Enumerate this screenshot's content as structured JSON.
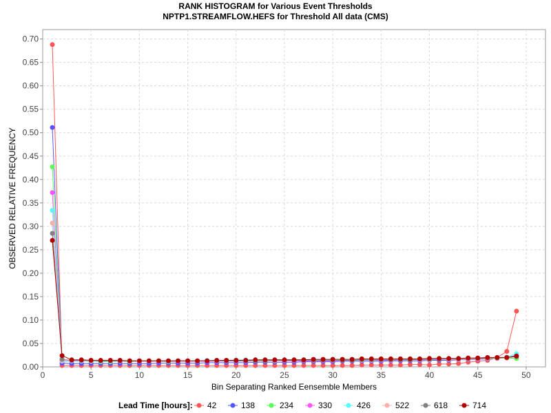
{
  "chart_data": {
    "type": "line",
    "title": "RANK HISTOGRAM for Various Event Thresholds",
    "subtitle": "NPTP1.STREAMFLOW.HEFS for Threshold All data (CMS)",
    "xlabel": "Bin Separating Ranked Eensemble Members",
    "ylabel": "OBSERVED RELATIVE FREQUENCY",
    "xlim": [
      0,
      52
    ],
    "ylim": [
      0,
      0.72
    ],
    "x_ticks": [
      0,
      5,
      10,
      15,
      20,
      25,
      30,
      35,
      40,
      45,
      50
    ],
    "y_ticks": [
      0.0,
      0.05,
      0.1,
      0.15,
      0.2,
      0.25,
      0.3,
      0.35,
      0.4,
      0.45,
      0.5,
      0.55,
      0.6,
      0.65,
      0.7
    ],
    "grid": true,
    "legend_title": "Lead Time [hours]:",
    "legend_position": "bottom",
    "x": [
      1,
      2,
      3,
      4,
      5,
      6,
      7,
      8,
      9,
      10,
      11,
      12,
      13,
      14,
      15,
      16,
      17,
      18,
      19,
      20,
      21,
      22,
      23,
      24,
      25,
      26,
      27,
      28,
      29,
      30,
      31,
      32,
      33,
      34,
      35,
      36,
      37,
      38,
      39,
      40,
      41,
      42,
      43,
      44,
      45,
      46,
      47,
      48,
      49
    ],
    "series": [
      {
        "name": "42",
        "color": "#ff5555",
        "values": [
          0.688,
          0.003,
          0.003,
          0.003,
          0.003,
          0.003,
          0.003,
          0.003,
          0.003,
          0.003,
          0.003,
          0.003,
          0.003,
          0.003,
          0.003,
          0.003,
          0.003,
          0.003,
          0.003,
          0.003,
          0.003,
          0.003,
          0.003,
          0.003,
          0.003,
          0.003,
          0.003,
          0.003,
          0.003,
          0.003,
          0.003,
          0.003,
          0.004,
          0.004,
          0.004,
          0.004,
          0.004,
          0.005,
          0.005,
          0.004,
          0.006,
          0.006,
          0.007,
          0.01,
          0.012,
          0.014,
          0.02,
          0.033,
          0.119
        ]
      },
      {
        "name": "138",
        "color": "#5555ff",
        "values": [
          0.511,
          0.008,
          0.007,
          0.007,
          0.007,
          0.007,
          0.007,
          0.007,
          0.007,
          0.007,
          0.007,
          0.008,
          0.008,
          0.008,
          0.008,
          0.008,
          0.009,
          0.009,
          0.009,
          0.009,
          0.009,
          0.01,
          0.01,
          0.01,
          0.01,
          0.01,
          0.011,
          0.011,
          0.011,
          0.011,
          0.012,
          0.012,
          0.012,
          0.012,
          0.012,
          0.013,
          0.013,
          0.013,
          0.013,
          0.014,
          0.014,
          0.014,
          0.015,
          0.016,
          0.016,
          0.017,
          0.018,
          0.019,
          0.025
        ]
      },
      {
        "name": "234",
        "color": "#55ff55",
        "values": [
          0.427,
          0.012,
          0.013,
          0.012,
          0.012,
          0.011,
          0.011,
          0.012,
          0.011,
          0.012,
          0.012,
          0.012,
          0.011,
          0.012,
          0.012,
          0.012,
          0.013,
          0.013,
          0.013,
          0.013,
          0.014,
          0.014,
          0.014,
          0.014,
          0.014,
          0.015,
          0.015,
          0.015,
          0.015,
          0.016,
          0.016,
          0.016,
          0.016,
          0.016,
          0.016,
          0.017,
          0.017,
          0.017,
          0.017,
          0.017,
          0.017,
          0.017,
          0.018,
          0.018,
          0.018,
          0.018,
          0.018,
          0.019,
          0.018
        ]
      },
      {
        "name": "330",
        "color": "#ff55ff",
        "values": [
          0.372,
          0.012,
          0.012,
          0.012,
          0.012,
          0.012,
          0.012,
          0.012,
          0.012,
          0.012,
          0.012,
          0.012,
          0.012,
          0.012,
          0.012,
          0.012,
          0.012,
          0.012,
          0.012,
          0.012,
          0.012,
          0.013,
          0.013,
          0.013,
          0.013,
          0.013,
          0.013,
          0.013,
          0.013,
          0.013,
          0.014,
          0.014,
          0.014,
          0.014,
          0.014,
          0.014,
          0.015,
          0.015,
          0.015,
          0.015,
          0.016,
          0.016,
          0.016,
          0.017,
          0.017,
          0.018,
          0.019,
          0.02,
          0.022
        ]
      },
      {
        "name": "426",
        "color": "#55ffff",
        "values": [
          0.334,
          0.013,
          0.013,
          0.013,
          0.012,
          0.012,
          0.012,
          0.013,
          0.013,
          0.013,
          0.013,
          0.013,
          0.013,
          0.013,
          0.013,
          0.013,
          0.014,
          0.014,
          0.014,
          0.015,
          0.015,
          0.015,
          0.015,
          0.015,
          0.015,
          0.015,
          0.015,
          0.015,
          0.015,
          0.016,
          0.016,
          0.016,
          0.016,
          0.016,
          0.016,
          0.016,
          0.016,
          0.016,
          0.016,
          0.017,
          0.017,
          0.017,
          0.017,
          0.018,
          0.018,
          0.019,
          0.02,
          0.021,
          0.028
        ]
      },
      {
        "name": "522",
        "color": "#ffafaf",
        "values": [
          0.307,
          0.014,
          0.014,
          0.014,
          0.013,
          0.013,
          0.013,
          0.013,
          0.013,
          0.013,
          0.013,
          0.013,
          0.013,
          0.013,
          0.013,
          0.013,
          0.013,
          0.013,
          0.013,
          0.013,
          0.013,
          0.013,
          0.013,
          0.013,
          0.014,
          0.014,
          0.014,
          0.014,
          0.014,
          0.014,
          0.014,
          0.014,
          0.014,
          0.014,
          0.015,
          0.015,
          0.015,
          0.015,
          0.015,
          0.015,
          0.016,
          0.016,
          0.016,
          0.017,
          0.017,
          0.018,
          0.018,
          0.019,
          0.022
        ]
      },
      {
        "name": "618",
        "color": "#808080",
        "values": [
          0.285,
          0.016,
          0.014,
          0.014,
          0.014,
          0.013,
          0.013,
          0.013,
          0.013,
          0.013,
          0.013,
          0.013,
          0.013,
          0.013,
          0.013,
          0.013,
          0.013,
          0.013,
          0.013,
          0.013,
          0.013,
          0.013,
          0.013,
          0.014,
          0.014,
          0.014,
          0.014,
          0.014,
          0.014,
          0.014,
          0.014,
          0.014,
          0.015,
          0.015,
          0.015,
          0.015,
          0.015,
          0.015,
          0.016,
          0.016,
          0.016,
          0.017,
          0.017,
          0.018,
          0.018,
          0.019,
          0.019,
          0.02,
          0.022
        ]
      },
      {
        "name": "714",
        "color": "#b00000",
        "values": [
          0.27,
          0.024,
          0.015,
          0.015,
          0.014,
          0.014,
          0.014,
          0.014,
          0.013,
          0.013,
          0.013,
          0.013,
          0.013,
          0.013,
          0.013,
          0.013,
          0.013,
          0.014,
          0.014,
          0.014,
          0.014,
          0.015,
          0.015,
          0.015,
          0.015,
          0.015,
          0.015,
          0.016,
          0.016,
          0.016,
          0.016,
          0.016,
          0.017,
          0.017,
          0.017,
          0.017,
          0.017,
          0.017,
          0.017,
          0.018,
          0.018,
          0.018,
          0.018,
          0.019,
          0.019,
          0.02,
          0.02,
          0.02,
          0.023
        ]
      }
    ]
  }
}
